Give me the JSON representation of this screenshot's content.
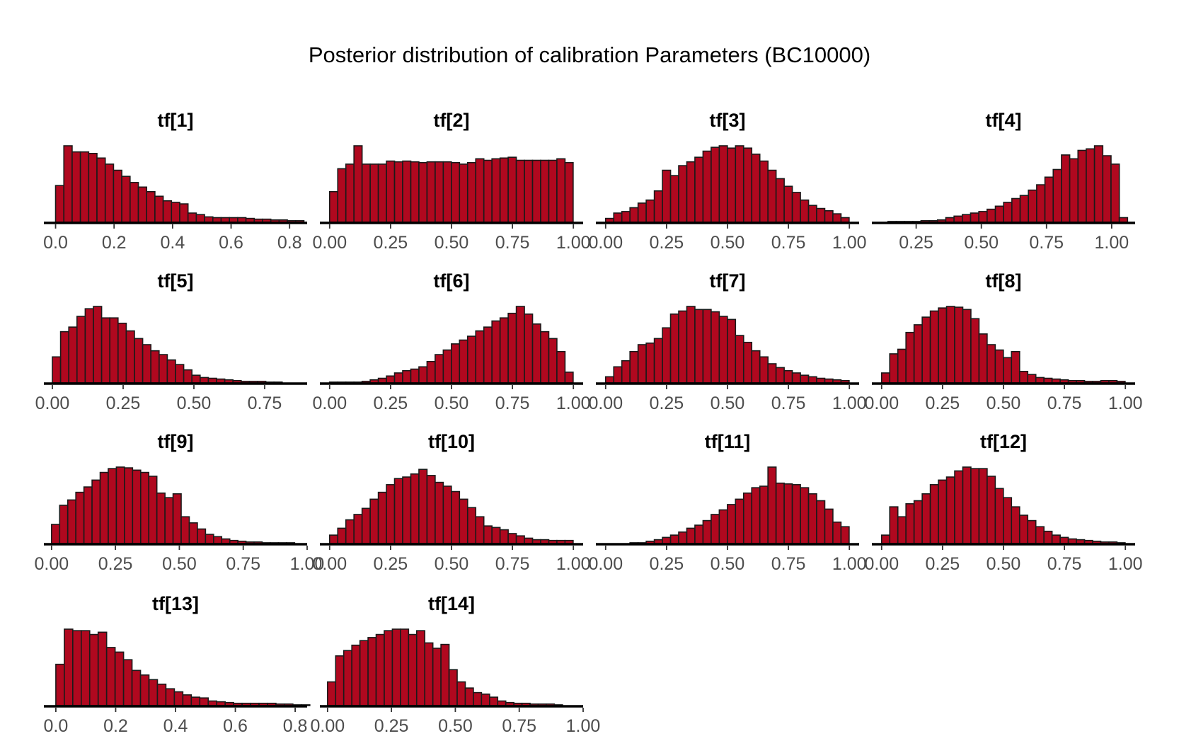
{
  "figure": {
    "title": "Posterior distribution of calibration Parameters (BC10000)"
  },
  "colors": {
    "bar_fill": "#B0081F",
    "bar_edge": "#1a1a1a",
    "axis": "#000000",
    "tick_text": "#4d4d4d"
  },
  "chart_data": [
    {
      "type": "bar",
      "title": "tf[1]",
      "xlim": [
        -0.04,
        0.86
      ],
      "xticks": [
        0.0,
        0.2,
        0.4,
        0.6,
        0.8
      ],
      "xtick_labels": [
        "0.0",
        "0.2",
        "0.4",
        "0.6",
        "0.8"
      ],
      "bin_start": 0.0,
      "bin_width": 0.0283,
      "heights": [
        0.48,
        1.0,
        0.92,
        0.92,
        0.9,
        0.84,
        0.76,
        0.68,
        0.6,
        0.52,
        0.46,
        0.4,
        0.34,
        0.28,
        0.26,
        0.24,
        0.12,
        0.1,
        0.07,
        0.06,
        0.06,
        0.06,
        0.06,
        0.05,
        0.04,
        0.04,
        0.03,
        0.03,
        0.02,
        0.02
      ]
    },
    {
      "type": "bar",
      "title": "tf[2]",
      "xlim": [
        -0.04,
        1.04
      ],
      "xticks": [
        0.0,
        0.25,
        0.5,
        0.75,
        1.0
      ],
      "xtick_labels": [
        "0.00",
        "0.25",
        "0.50",
        "0.75",
        "1.00"
      ],
      "bin_start": 0.0,
      "bin_width": 0.0333,
      "heights": [
        0.4,
        0.7,
        0.76,
        1.0,
        0.76,
        0.76,
        0.76,
        0.8,
        0.79,
        0.8,
        0.79,
        0.78,
        0.79,
        0.79,
        0.79,
        0.78,
        0.76,
        0.78,
        0.83,
        0.81,
        0.83,
        0.84,
        0.85,
        0.81,
        0.81,
        0.81,
        0.81,
        0.81,
        0.83,
        0.78
      ]
    },
    {
      "type": "bar",
      "title": "tf[3]",
      "xlim": [
        -0.04,
        1.04
      ],
      "xticks": [
        0.0,
        0.25,
        0.5,
        0.75,
        1.0
      ],
      "xtick_labels": [
        "0.00",
        "0.25",
        "0.50",
        "0.75",
        "1.00"
      ],
      "bin_start": 0.0,
      "bin_width": 0.0333,
      "heights": [
        0.05,
        0.12,
        0.14,
        0.19,
        0.25,
        0.29,
        0.41,
        0.68,
        0.61,
        0.74,
        0.79,
        0.85,
        0.93,
        0.98,
        1.0,
        0.97,
        1.0,
        0.97,
        0.89,
        0.8,
        0.68,
        0.57,
        0.47,
        0.39,
        0.29,
        0.22,
        0.18,
        0.15,
        0.11,
        0.06
      ]
    },
    {
      "type": "bar",
      "title": "tf[4]",
      "xlim": [
        0.08,
        1.09
      ],
      "xticks": [
        0.25,
        0.5,
        0.75,
        1.0
      ],
      "xtick_labels": [
        "0.25",
        "0.50",
        "0.75",
        "1.00"
      ],
      "bin_start": 0.11,
      "bin_width": 0.0317,
      "heights": [
        0.0,
        0.01,
        0.01,
        0.01,
        0.01,
        0.02,
        0.02,
        0.03,
        0.06,
        0.08,
        0.1,
        0.12,
        0.14,
        0.17,
        0.21,
        0.26,
        0.31,
        0.35,
        0.42,
        0.49,
        0.59,
        0.69,
        0.88,
        0.83,
        0.94,
        0.96,
        1.0,
        0.87,
        0.76,
        0.06
      ]
    },
    {
      "type": "bar",
      "title": "tf[5]",
      "xlim": [
        -0.03,
        0.9
      ],
      "xticks": [
        0.0,
        0.25,
        0.5,
        0.75
      ],
      "xtick_labels": [
        "0.00",
        "0.25",
        "0.50",
        "0.75"
      ],
      "bin_start": 0.0,
      "bin_width": 0.029,
      "heights": [
        0.34,
        0.67,
        0.73,
        0.87,
        0.97,
        1.0,
        0.85,
        0.85,
        0.78,
        0.68,
        0.58,
        0.5,
        0.42,
        0.37,
        0.3,
        0.24,
        0.17,
        0.1,
        0.07,
        0.06,
        0.05,
        0.04,
        0.03,
        0.02,
        0.02,
        0.02,
        0.01,
        0.01,
        0.0,
        0.0
      ]
    },
    {
      "type": "bar",
      "title": "tf[6]",
      "xlim": [
        -0.04,
        1.04
      ],
      "xticks": [
        0.0,
        0.25,
        0.5,
        0.75,
        1.0
      ],
      "xtick_labels": [
        "0.00",
        "0.25",
        "0.50",
        "0.75",
        "1.00"
      ],
      "bin_start": 0.0,
      "bin_width": 0.0333,
      "heights": [
        0.01,
        0.01,
        0.01,
        0.01,
        0.02,
        0.04,
        0.06,
        0.09,
        0.13,
        0.16,
        0.18,
        0.21,
        0.28,
        0.37,
        0.43,
        0.51,
        0.56,
        0.61,
        0.68,
        0.73,
        0.81,
        0.85,
        0.91,
        1.0,
        0.9,
        0.77,
        0.67,
        0.58,
        0.41,
        0.14
      ]
    },
    {
      "type": "bar",
      "title": "tf[7]",
      "xlim": [
        -0.04,
        1.04
      ],
      "xticks": [
        0.0,
        0.25,
        0.5,
        0.75,
        1.0
      ],
      "xtick_labels": [
        "0.00",
        "0.25",
        "0.50",
        "0.75",
        "1.00"
      ],
      "bin_start": 0.0,
      "bin_width": 0.0333,
      "heights": [
        0.08,
        0.21,
        0.29,
        0.41,
        0.5,
        0.52,
        0.58,
        0.72,
        0.9,
        0.94,
        1.0,
        0.96,
        0.96,
        0.93,
        0.87,
        0.83,
        0.62,
        0.53,
        0.42,
        0.34,
        0.25,
        0.2,
        0.16,
        0.13,
        0.1,
        0.08,
        0.06,
        0.05,
        0.04,
        0.03
      ]
    },
    {
      "type": "bar",
      "title": "tf[8]",
      "xlim": [
        -0.04,
        1.04
      ],
      "xticks": [
        0.0,
        0.25,
        0.5,
        0.75,
        1.0
      ],
      "xtick_labels": [
        "0.00",
        "0.25",
        "0.50",
        "0.75",
        "1.00"
      ],
      "bin_start": 0.0,
      "bin_width": 0.0333,
      "heights": [
        0.13,
        0.38,
        0.44,
        0.66,
        0.76,
        0.86,
        0.94,
        0.98,
        1.0,
        0.99,
        0.96,
        0.84,
        0.64,
        0.5,
        0.43,
        0.33,
        0.41,
        0.15,
        0.11,
        0.07,
        0.06,
        0.05,
        0.04,
        0.03,
        0.03,
        0.02,
        0.02,
        0.03,
        0.03,
        0.02
      ]
    },
    {
      "type": "bar",
      "title": "tf[9]",
      "xlim": [
        -0.03,
        1.0
      ],
      "xticks": [
        0.0,
        0.25,
        0.5,
        0.75,
        1.0
      ],
      "xtick_labels": [
        "0.00",
        "0.25",
        "0.50",
        "0.75",
        "1.00"
      ],
      "bin_start": 0.0,
      "bin_width": 0.0317,
      "heights": [
        0.25,
        0.5,
        0.57,
        0.67,
        0.74,
        0.83,
        0.93,
        0.98,
        1.0,
        0.99,
        0.96,
        0.93,
        0.88,
        0.66,
        0.6,
        0.65,
        0.35,
        0.27,
        0.19,
        0.12,
        0.09,
        0.06,
        0.04,
        0.03,
        0.02,
        0.02,
        0.01,
        0.01,
        0.01,
        0.01
      ]
    },
    {
      "type": "bar",
      "title": "tf[10]",
      "xlim": [
        -0.04,
        1.04
      ],
      "xticks": [
        0.0,
        0.25,
        0.5,
        0.75,
        1.0
      ],
      "xtick_labels": [
        "0.00",
        "0.25",
        "0.50",
        "0.75",
        "1.00"
      ],
      "bin_start": 0.0,
      "bin_width": 0.0333,
      "heights": [
        0.11,
        0.2,
        0.31,
        0.38,
        0.46,
        0.58,
        0.67,
        0.77,
        0.85,
        0.87,
        0.91,
        0.97,
        0.89,
        0.8,
        0.75,
        0.68,
        0.58,
        0.47,
        0.35,
        0.23,
        0.21,
        0.18,
        0.13,
        0.1,
        0.07,
        0.05,
        0.05,
        0.04,
        0.04,
        0.04
      ]
    },
    {
      "type": "bar",
      "title": "tf[11]",
      "xlim": [
        -0.04,
        1.04
      ],
      "xticks": [
        0.0,
        0.25,
        0.5,
        0.75,
        1.0
      ],
      "xtick_labels": [
        "0.00",
        "0.25",
        "0.50",
        "0.75",
        "1.00"
      ],
      "bin_start": 0.0,
      "bin_width": 0.0333,
      "heights": [
        0.0,
        0.0,
        0.0,
        0.01,
        0.01,
        0.03,
        0.05,
        0.08,
        0.11,
        0.15,
        0.2,
        0.24,
        0.3,
        0.38,
        0.44,
        0.51,
        0.58,
        0.66,
        0.73,
        0.75,
        1.0,
        0.79,
        0.78,
        0.77,
        0.73,
        0.65,
        0.56,
        0.45,
        0.28,
        0.22
      ]
    },
    {
      "type": "bar",
      "title": "tf[12]",
      "xlim": [
        -0.04,
        1.04
      ],
      "xticks": [
        0.0,
        0.25,
        0.5,
        0.75,
        1.0
      ],
      "xtick_labels": [
        "0.00",
        "0.25",
        "0.50",
        "0.75",
        "1.00"
      ],
      "bin_start": 0.0,
      "bin_width": 0.0333,
      "heights": [
        0.11,
        0.48,
        0.35,
        0.52,
        0.56,
        0.65,
        0.77,
        0.83,
        0.87,
        0.95,
        1.0,
        0.98,
        0.98,
        0.88,
        0.72,
        0.6,
        0.48,
        0.37,
        0.3,
        0.22,
        0.16,
        0.11,
        0.08,
        0.06,
        0.05,
        0.04,
        0.03,
        0.02,
        0.02,
        0.01
      ]
    },
    {
      "type": "bar",
      "title": "tf[13]",
      "xlim": [
        -0.04,
        0.84
      ],
      "xticks": [
        0.0,
        0.2,
        0.4,
        0.6,
        0.8
      ],
      "xtick_labels": [
        "0.0",
        "0.2",
        "0.4",
        "0.6",
        "0.8"
      ],
      "bin_start": 0.0,
      "bin_width": 0.0283,
      "heights": [
        0.54,
        1.0,
        0.98,
        0.98,
        0.93,
        0.96,
        0.76,
        0.7,
        0.6,
        0.46,
        0.4,
        0.34,
        0.28,
        0.22,
        0.18,
        0.14,
        0.11,
        0.1,
        0.06,
        0.05,
        0.04,
        0.03,
        0.03,
        0.03,
        0.03,
        0.03,
        0.02,
        0.02,
        0.01,
        0.01
      ]
    },
    {
      "type": "bar",
      "title": "tf[14]",
      "xlim": [
        -0.03,
        1.0
      ],
      "xticks": [
        0.0,
        0.25,
        0.5,
        0.75,
        1.0
      ],
      "xtick_labels": [
        "0.00",
        "0.25",
        "0.50",
        "0.75",
        "1.00"
      ],
      "bin_start": 0.0,
      "bin_width": 0.0317,
      "heights": [
        0.31,
        0.65,
        0.72,
        0.79,
        0.85,
        0.89,
        0.93,
        0.98,
        1.0,
        1.0,
        0.93,
        0.98,
        0.82,
        0.75,
        0.8,
        0.47,
        0.31,
        0.23,
        0.17,
        0.15,
        0.11,
        0.06,
        0.04,
        0.03,
        0.03,
        0.02,
        0.02,
        0.02,
        0.01,
        0.0
      ]
    }
  ]
}
